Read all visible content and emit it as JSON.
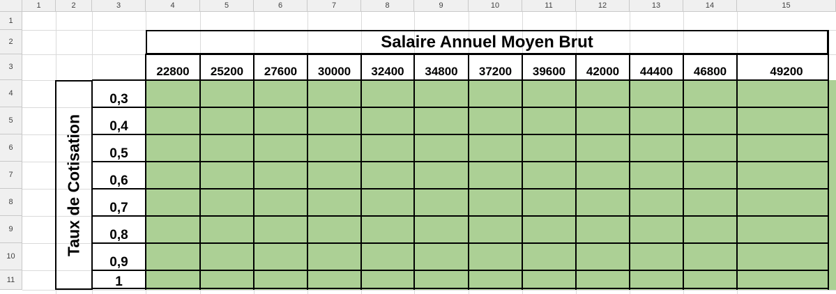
{
  "spreadsheet": {
    "column_headers": [
      "1",
      "2",
      "3",
      "4",
      "5",
      "6",
      "7",
      "8",
      "9",
      "10",
      "11",
      "12",
      "13",
      "14",
      "15"
    ],
    "row_headers": [
      "1",
      "2",
      "3",
      "4",
      "5",
      "6",
      "7",
      "8",
      "9",
      "10",
      "11"
    ],
    "title": "Salaire Annuel Moyen Brut",
    "salaries": [
      "22800",
      "25200",
      "27600",
      "30000",
      "32400",
      "34800",
      "37200",
      "39600",
      "42000",
      "44400",
      "46800",
      "49200"
    ],
    "vertical_title": "Taux de Cotisation",
    "rates": [
      "0,3",
      "0,4",
      "0,5",
      "0,6",
      "0,7",
      "0,8",
      "0,9",
      "1"
    ],
    "fill_color": "#acd095"
  }
}
